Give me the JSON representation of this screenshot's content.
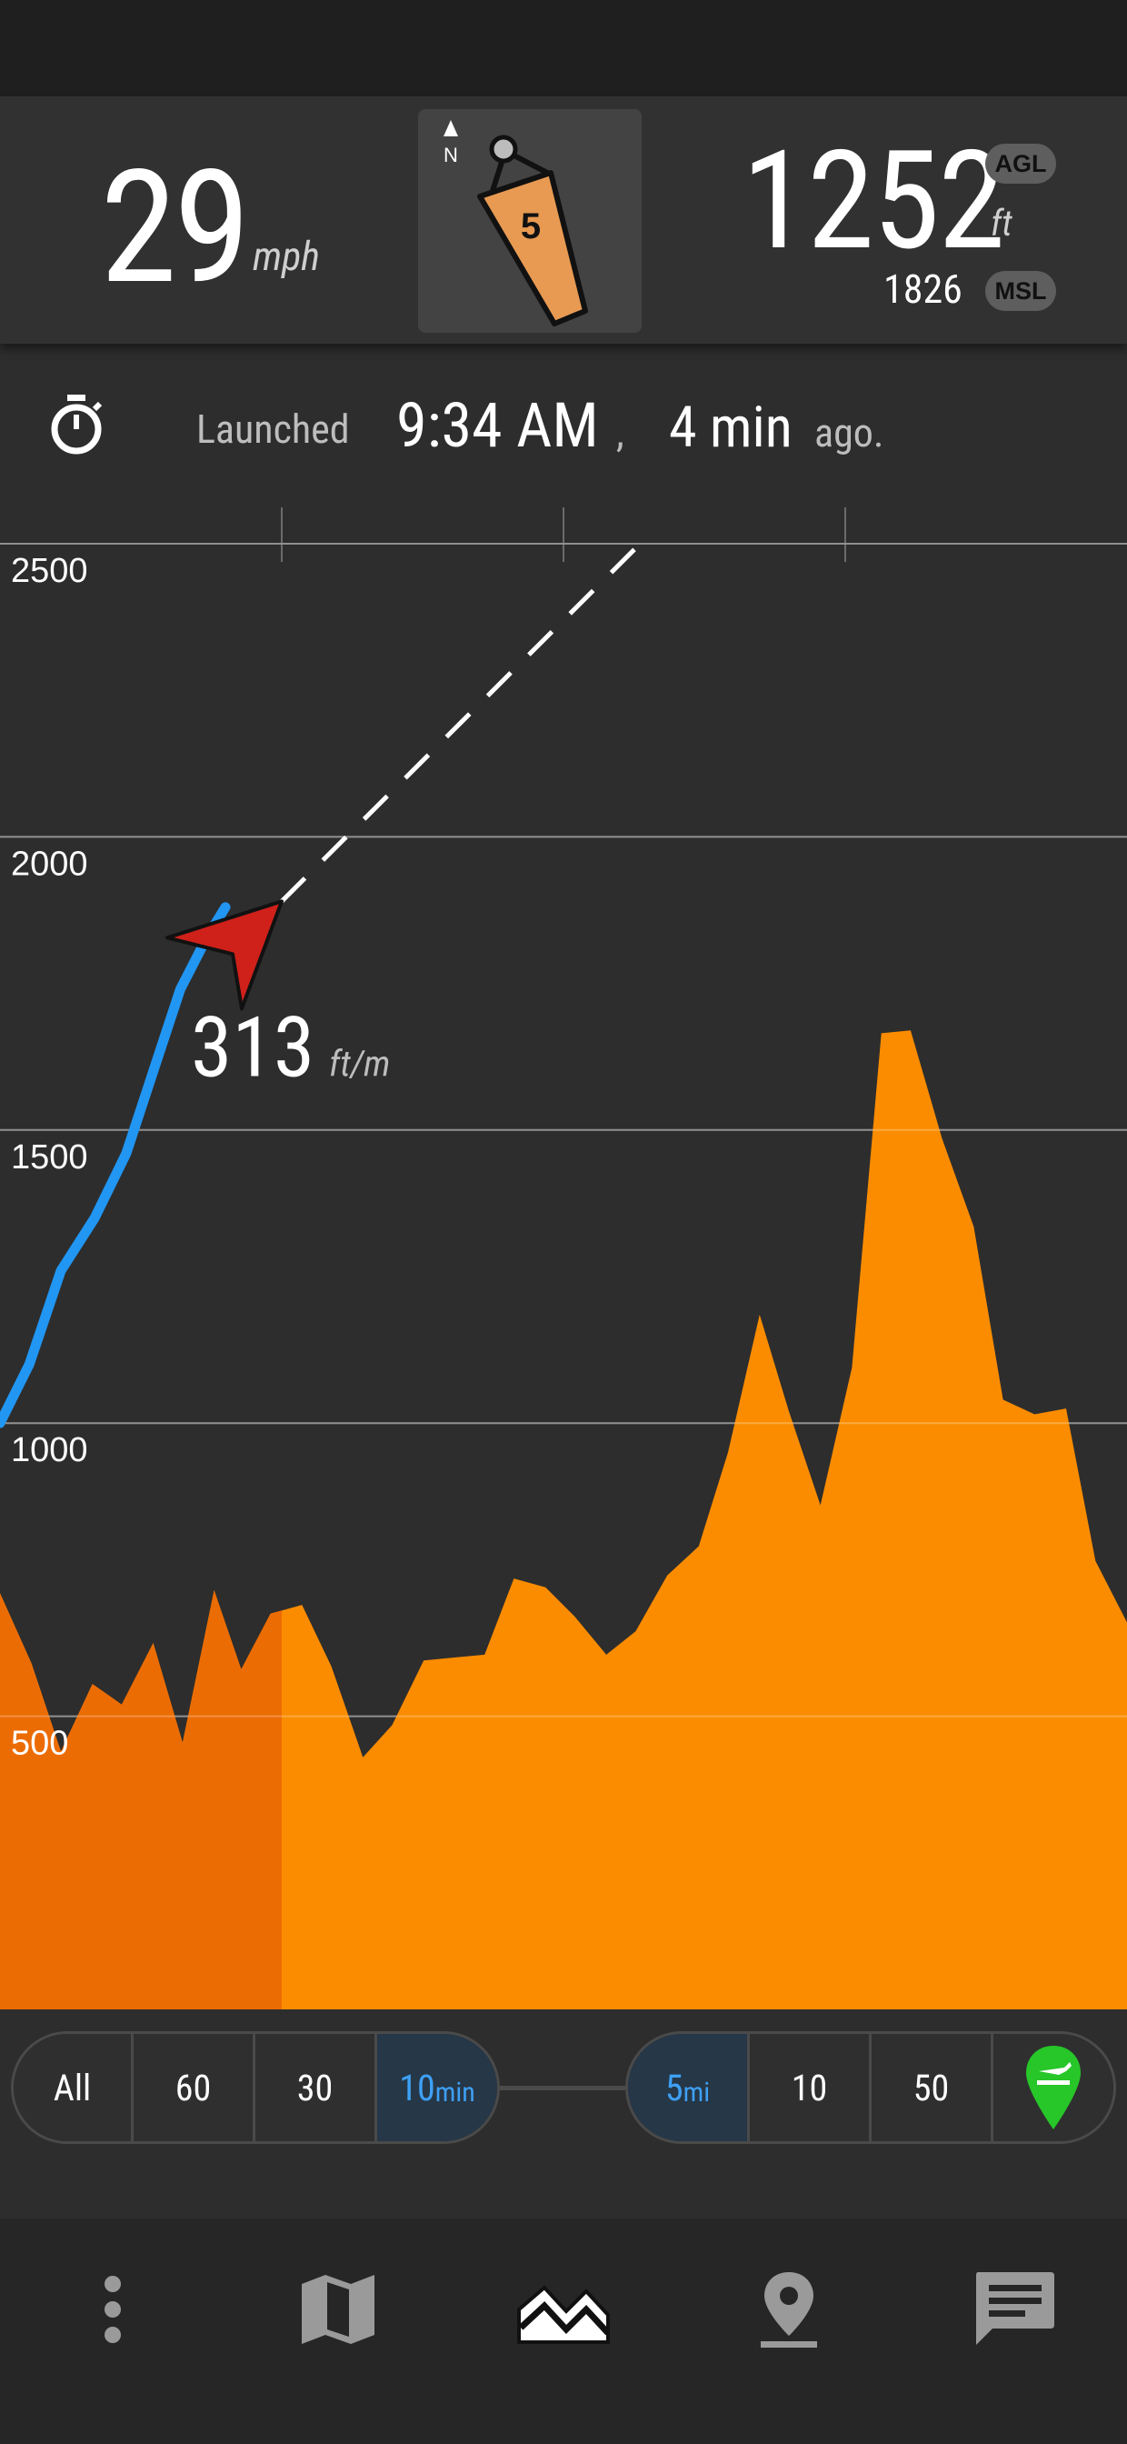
{
  "header": {
    "speed": {
      "value": "29",
      "unit": "mph"
    },
    "windsock": {
      "north_label": "N",
      "wind_value": "5"
    },
    "altitude": {
      "agl_value": "1252",
      "agl_unit": "ft",
      "agl_badge": "AGL",
      "msl_value": "1826",
      "msl_badge": "MSL"
    }
  },
  "launch": {
    "label": "Launched",
    "time": "9:34 AM",
    "comma": ",",
    "elapsed": "4 min",
    "suffix": "ago."
  },
  "chart_data": {
    "type": "area",
    "y_ticks": [
      "2500",
      "2000",
      "1500",
      "1000",
      "500"
    ],
    "ylim": [
      0,
      2500
    ],
    "x_range_mi": [
      0,
      5
    ],
    "grid": true,
    "vertical_speed": {
      "value": "313",
      "unit": "ft/m"
    },
    "terrain_elevation_ft": {
      "x_mi": [
        0,
        0.14,
        0.27,
        0.41,
        0.54,
        0.68,
        0.81,
        0.95,
        1.07,
        1.2,
        1.34,
        1.47,
        1.61,
        1.74,
        1.88,
        2.01,
        2.15,
        2.28,
        2.42,
        2.55,
        2.69,
        2.82,
        2.96,
        3.1,
        3.23,
        3.37,
        3.5,
        3.64,
        3.78,
        3.91,
        4.04,
        4.18,
        4.32,
        4.45,
        4.59,
        4.73,
        4.86,
        5.0
      ],
      "elevation": [
        710,
        590,
        440,
        555,
        520,
        625,
        455,
        715,
        580,
        675,
        690,
        585,
        430,
        485,
        595,
        600,
        605,
        735,
        720,
        670,
        605,
        645,
        740,
        790,
        950,
        1185,
        1020,
        860,
        1095,
        1665,
        1670,
        1485,
        1335,
        1040,
        1015,
        1025,
        765,
        660
      ]
    },
    "flight_track_altitude_ft": {
      "x_mi": [
        0,
        0.13,
        0.27,
        0.42,
        0.56,
        0.68,
        0.8,
        0.92,
        1.0
      ],
      "altitude": [
        1000,
        1100,
        1260,
        1350,
        1460,
        1600,
        1740,
        1830,
        1880
      ]
    },
    "projected_glide": {
      "from": [
        1.25,
        1890
      ],
      "to": [
        2.84,
        2500
      ]
    }
  },
  "controls": {
    "time_window": {
      "options": [
        "All",
        "60",
        "30",
        "10"
      ],
      "selected": "10",
      "selected_unit": "min"
    },
    "distance_window": {
      "options": [
        "5",
        "10",
        "50"
      ],
      "selected": "5",
      "selected_unit": "mi"
    }
  },
  "colors": {
    "terrain": "#fb8c00",
    "terrain_past": "#ec6c04",
    "track": "#2196f3",
    "arrow": "#d0201a",
    "takeoff_pin": "#27c629",
    "active_button": "#3ea0f5"
  },
  "bottom_nav": {
    "items": [
      "more-icon",
      "map-icon",
      "chart-icon",
      "location-pin-icon",
      "chat-icon"
    ],
    "selected": "chart-icon"
  }
}
